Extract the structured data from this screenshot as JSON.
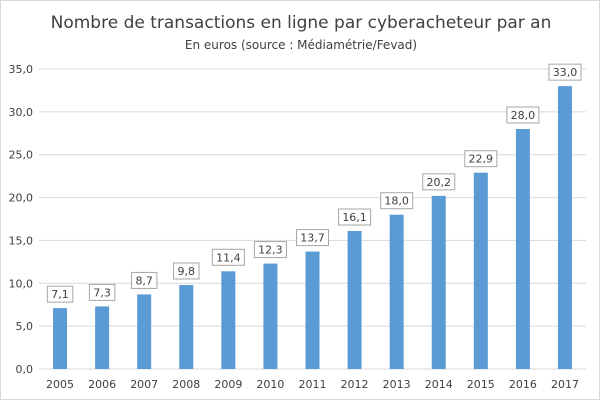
{
  "chart_data": {
    "type": "bar",
    "title": "Nombre de transactions en ligne par cyberacheteur par an",
    "subtitle": "En euros (source : Médiamétrie/Fevad)",
    "xlabel": "",
    "ylabel": "",
    "categories": [
      "2005",
      "2006",
      "2007",
      "2008",
      "2009",
      "2010",
      "2011",
      "2012",
      "2013",
      "2014",
      "2015",
      "2016",
      "2017"
    ],
    "values": [
      7.1,
      7.3,
      8.7,
      9.8,
      11.4,
      12.3,
      13.7,
      16.1,
      18.0,
      20.2,
      22.9,
      28.0,
      33.0
    ],
    "value_labels": [
      "7,1",
      "7,3",
      "8,7",
      "9,8",
      "11,4",
      "12,3",
      "13,7",
      "16,1",
      "18,0",
      "20,2",
      "22,9",
      "28,0",
      "33,0"
    ],
    "ylim": [
      0,
      35
    ],
    "yticks": [
      0,
      5,
      10,
      15,
      20,
      25,
      30,
      35
    ],
    "ytick_labels": [
      "0,0",
      "5,0",
      "10,0",
      "15,0",
      "20,0",
      "25,0",
      "30,0",
      "35,0"
    ],
    "grid": true,
    "bar_color": "#5b9bd5",
    "grid_color": "#d9d9d9"
  }
}
